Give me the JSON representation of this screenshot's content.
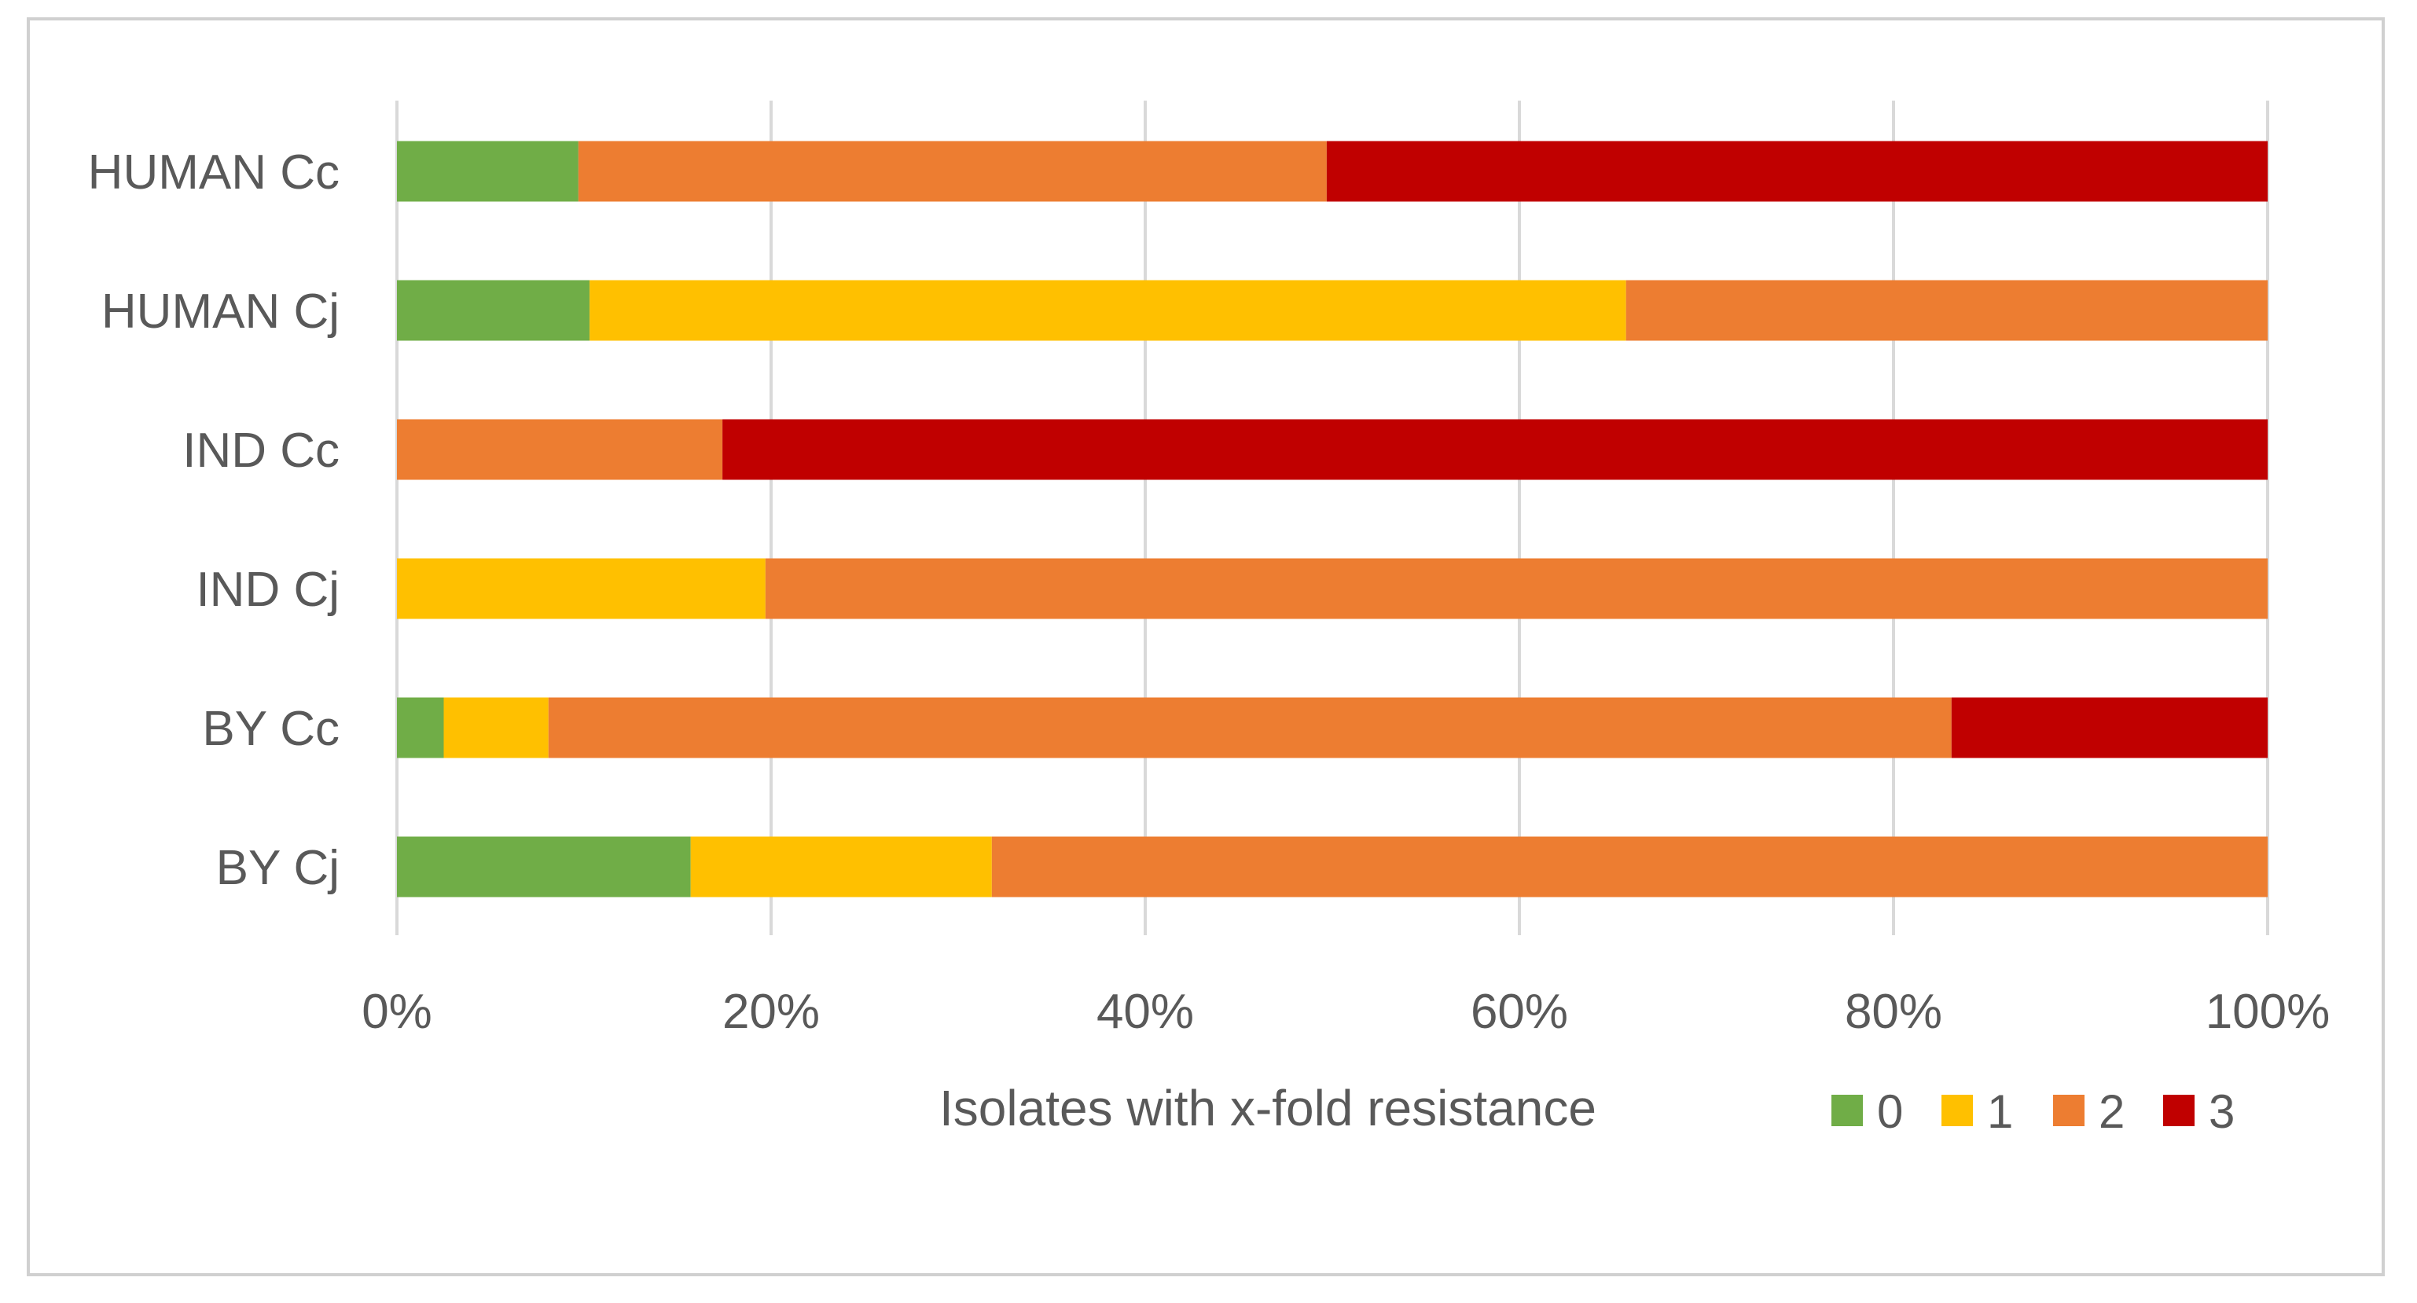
{
  "chart_data": {
    "type": "bar",
    "orientation": "horizontal",
    "stacked": "percent",
    "categories": [
      "HUMAN Cc",
      "HUMAN Cj",
      "IND Cc",
      "IND Cj",
      "BY Cc",
      "BY Cj"
    ],
    "series": [
      {
        "name": "0",
        "color": "#70AD47",
        "values": [
          9.7,
          10.3,
          0,
          0,
          2.5,
          15.7
        ]
      },
      {
        "name": "1",
        "color": "#FFC000",
        "values": [
          0,
          55.4,
          0,
          19.7,
          5.6,
          16.1
        ]
      },
      {
        "name": "2",
        "color": "#ED7D31",
        "values": [
          40.0,
          34.3,
          17.4,
          80.3,
          75.0,
          68.2
        ]
      },
      {
        "name": "3",
        "color": "#C00000",
        "values": [
          50.3,
          0,
          82.6,
          0,
          16.9,
          0
        ]
      }
    ],
    "title": "",
    "xlabel": "Isolates with x-fold resistance",
    "ylabel": "",
    "xlim": [
      0,
      100
    ],
    "xticks": [
      "0%",
      "20%",
      "40%",
      "60%",
      "80%",
      "100%"
    ],
    "grid": true,
    "legend_position": "bottom-right"
  }
}
